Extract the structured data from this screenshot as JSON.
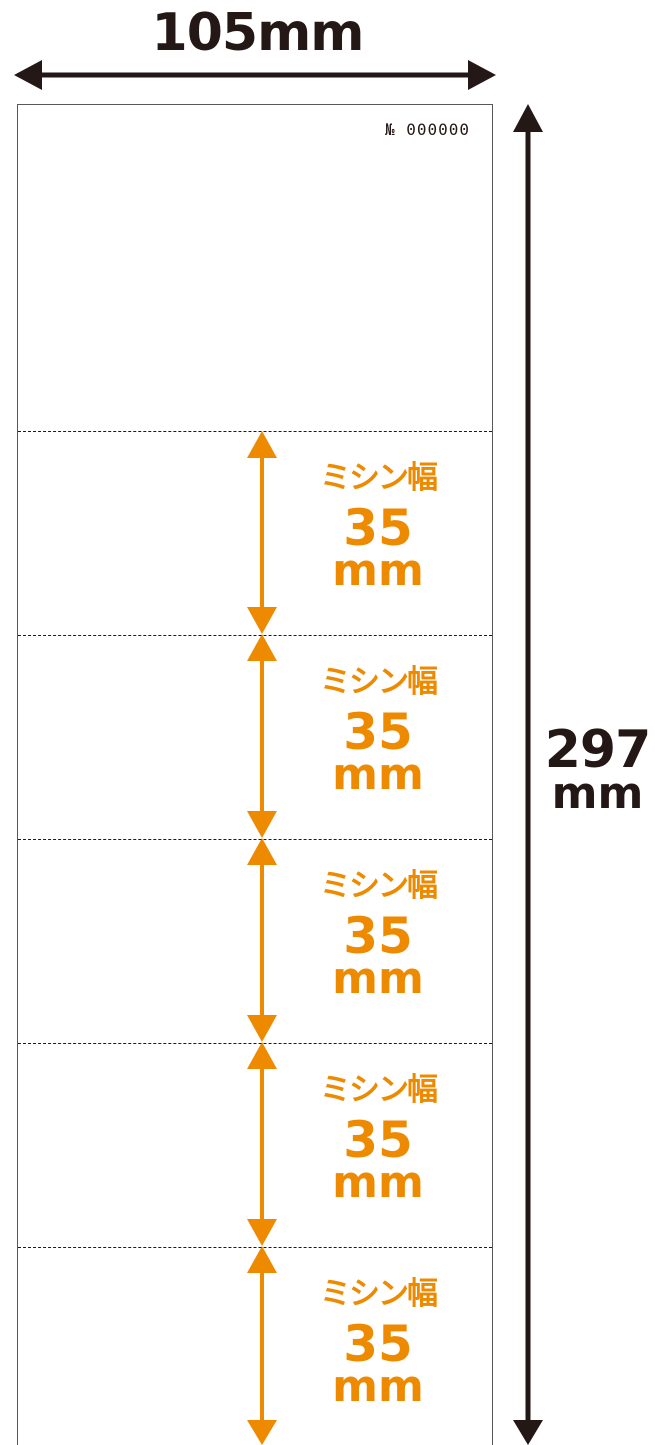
{
  "dimensions": {
    "width_label": "105mm",
    "height_number": "297",
    "height_unit": "mm"
  },
  "sheet": {
    "serial": "№ 000000"
  },
  "segments": [
    {
      "title": "ミシン幅",
      "value": "35",
      "unit": "mm"
    },
    {
      "title": "ミシン幅",
      "value": "35",
      "unit": "mm"
    },
    {
      "title": "ミシン幅",
      "value": "35",
      "unit": "mm"
    },
    {
      "title": "ミシン幅",
      "value": "35",
      "unit": "mm"
    },
    {
      "title": "ミシン幅",
      "value": "35",
      "unit": "mm"
    }
  ],
  "colors": {
    "dimension": "#231815",
    "accent": "#ee8a00",
    "border": "#595757"
  }
}
